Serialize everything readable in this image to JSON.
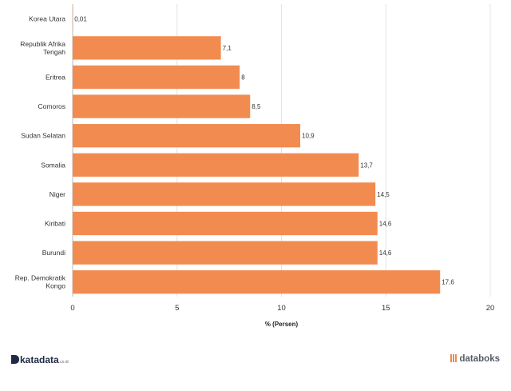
{
  "chart_data": {
    "type": "bar",
    "orientation": "horizontal",
    "categories": [
      [
        "Korea Utara"
      ],
      [
        "Republik Afrika",
        "Tengah"
      ],
      [
        "Eritrea"
      ],
      [
        "Comoros"
      ],
      [
        "Sudan Selatan"
      ],
      [
        "Somalia"
      ],
      [
        "Niger"
      ],
      [
        "Kiribati"
      ],
      [
        "Burundi"
      ],
      [
        "Rep. Demokratik",
        "Kongo"
      ]
    ],
    "values": [
      0.01,
      7.1,
      8,
      8.5,
      10.9,
      13.7,
      14.5,
      14.6,
      14.6,
      17.6
    ],
    "value_labels": [
      "0,01",
      "7,1",
      "8",
      "8,5",
      "10,9",
      "13,7",
      "14,5",
      "14,6",
      "14,6",
      "17,6"
    ],
    "xlim": [
      0,
      20
    ],
    "xticks": [
      0,
      5,
      10,
      15,
      20
    ],
    "xlabel": "% (Persen)",
    "grid": true,
    "bar_color": "#f28b50"
  },
  "footer": {
    "left_logo": "katadata",
    "left_logo_suffix": ".co.id",
    "right_logo": "databoks"
  }
}
